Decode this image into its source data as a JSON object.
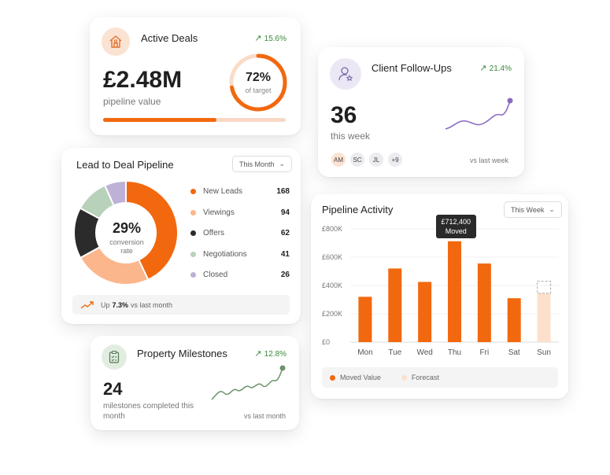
{
  "active_deals": {
    "title": "Active Deals",
    "trend": "15.6%",
    "value": "£2.48M",
    "sub": "pipeline value",
    "ring_pct": "72%",
    "ring_label": "of target",
    "progress_fraction": 0.62,
    "ring_fraction": 0.72,
    "icon": "house-icon"
  },
  "client_followups": {
    "title": "Client Follow-Ups",
    "trend": "21.4%",
    "value": "36",
    "sub": "this week",
    "vs": "vs last week",
    "icon": "user-star-icon",
    "avatars": [
      {
        "initials": "AM",
        "color": "#fbe3d3"
      },
      {
        "initials": "SC",
        "color": "#ebebf0"
      },
      {
        "initials": "JL",
        "color": "#ebebf0"
      },
      {
        "initials": "+9",
        "color": "#ebebf0"
      }
    ]
  },
  "lead_pipeline": {
    "title": "Lead to Deal Pipeline",
    "dropdown": "This Month",
    "conversion_pct": "29%",
    "conversion_label": "conversion rate",
    "items": [
      {
        "label": "New Leads",
        "value": "168",
        "color": "#f2680f"
      },
      {
        "label": "Viewings",
        "value": "94",
        "color": "#fbb68c"
      },
      {
        "label": "Offers",
        "value": "62",
        "color": "#2b2b2b"
      },
      {
        "label": "Negotiations",
        "value": "41",
        "color": "#b8d1ba"
      },
      {
        "label": "Closed",
        "value": "26",
        "color": "#bdb1d6"
      }
    ],
    "footer_prefix": "Up",
    "footer_value": "7.3%",
    "footer_suffix": "vs last month"
  },
  "milestones": {
    "title": "Property Milestones",
    "trend": "12.8%",
    "value": "24",
    "sub": "milestones completed this month",
    "vs": "vs last month",
    "icon": "clipboard-check-icon"
  },
  "activity": {
    "title": "Pipeline Activity",
    "dropdown": "This Week",
    "tooltip_value": "£712,400",
    "tooltip_label": "Moved",
    "legend_moved": "Moved Value",
    "legend_forecast": "Forecast",
    "colors": {
      "moved": "#f2680f",
      "forecast": "#fde0cc"
    }
  },
  "chart_data": {
    "type": "bar",
    "categories": [
      "Mon",
      "Tue",
      "Wed",
      "Thu",
      "Fri",
      "Sat",
      "Sun"
    ],
    "yticks": [
      "£0",
      "£200K",
      "£400K",
      "£600K",
      "£800K"
    ],
    "ylim": [
      0,
      800000
    ],
    "series": [
      {
        "name": "Moved Value",
        "values": [
          320000,
          520000,
          425000,
          712400,
          555000,
          310000,
          null
        ]
      },
      {
        "name": "Forecast",
        "values": [
          null,
          null,
          null,
          null,
          null,
          null,
          345000
        ]
      }
    ],
    "forecast_dashed_top": 430000
  }
}
